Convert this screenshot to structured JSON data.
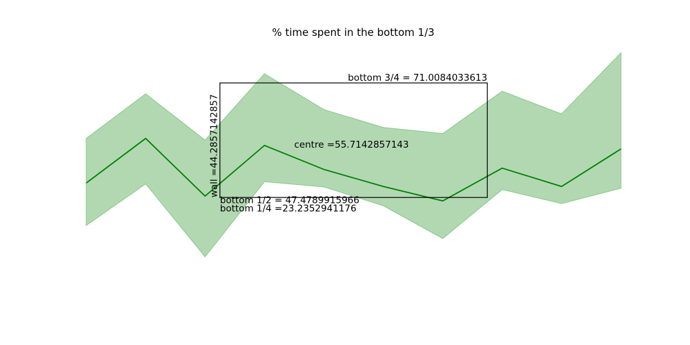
{
  "chart_data": {
    "type": "area",
    "title": "% time spent in the bottom 1/3",
    "xlabel": "",
    "ylabel": "",
    "axes_visible": false,
    "grid": false,
    "colors": {
      "line": "#008000",
      "band": "#b2d8b2",
      "band_edge": "#88c888",
      "box": "#000000"
    },
    "x": [
      0,
      1,
      2,
      3,
      4,
      5,
      6,
      7,
      8,
      9
    ],
    "series": [
      {
        "role": "mean",
        "values": [
          47.6,
          57.8,
          44.6,
          56.2,
          50.7,
          46.8,
          43.5,
          51.0,
          46.8,
          55.4
        ]
      }
    ],
    "band": {
      "lower": [
        37.9,
        47.4,
        30.7,
        47.9,
        46.7,
        42.4,
        34.9,
        46.1,
        42.9,
        46.4
      ],
      "upper": [
        57.8,
        68.0,
        57.4,
        72.6,
        64.4,
        60.3,
        58.9,
        68.6,
        63.4,
        77.4
      ]
    },
    "xlim": [
      0,
      9
    ],
    "ylim": [
      20,
      80
    ],
    "box": {
      "x_range": [
        2.25,
        6.75
      ],
      "y_range": [
        44.2857142857,
        70.5
      ]
    },
    "annotations": [
      {
        "id": "bottom-3-4",
        "text": "bottom 3/4 = 71.0084033613",
        "x": 6.75,
        "y": 71.0084033613,
        "anchor": "end"
      },
      {
        "id": "centre",
        "text": "centre =55.7142857143",
        "x": 3.5,
        "y": 55.7142857143,
        "anchor": "start"
      },
      {
        "id": "wall",
        "text": "wall =44.2857142857",
        "x": 2.25,
        "y": 44.2857142857,
        "anchor": "start",
        "rotate": -90
      },
      {
        "id": "bottom-1-2",
        "text": "bottom 1/2 = 47.4789915966",
        "x": 2.25,
        "y": 43.0,
        "anchor": "start"
      },
      {
        "id": "bottom-1-4",
        "text": "bottom 1/4 =23.2352941176",
        "x": 2.25,
        "y": 41.1,
        "anchor": "start"
      }
    ]
  }
}
